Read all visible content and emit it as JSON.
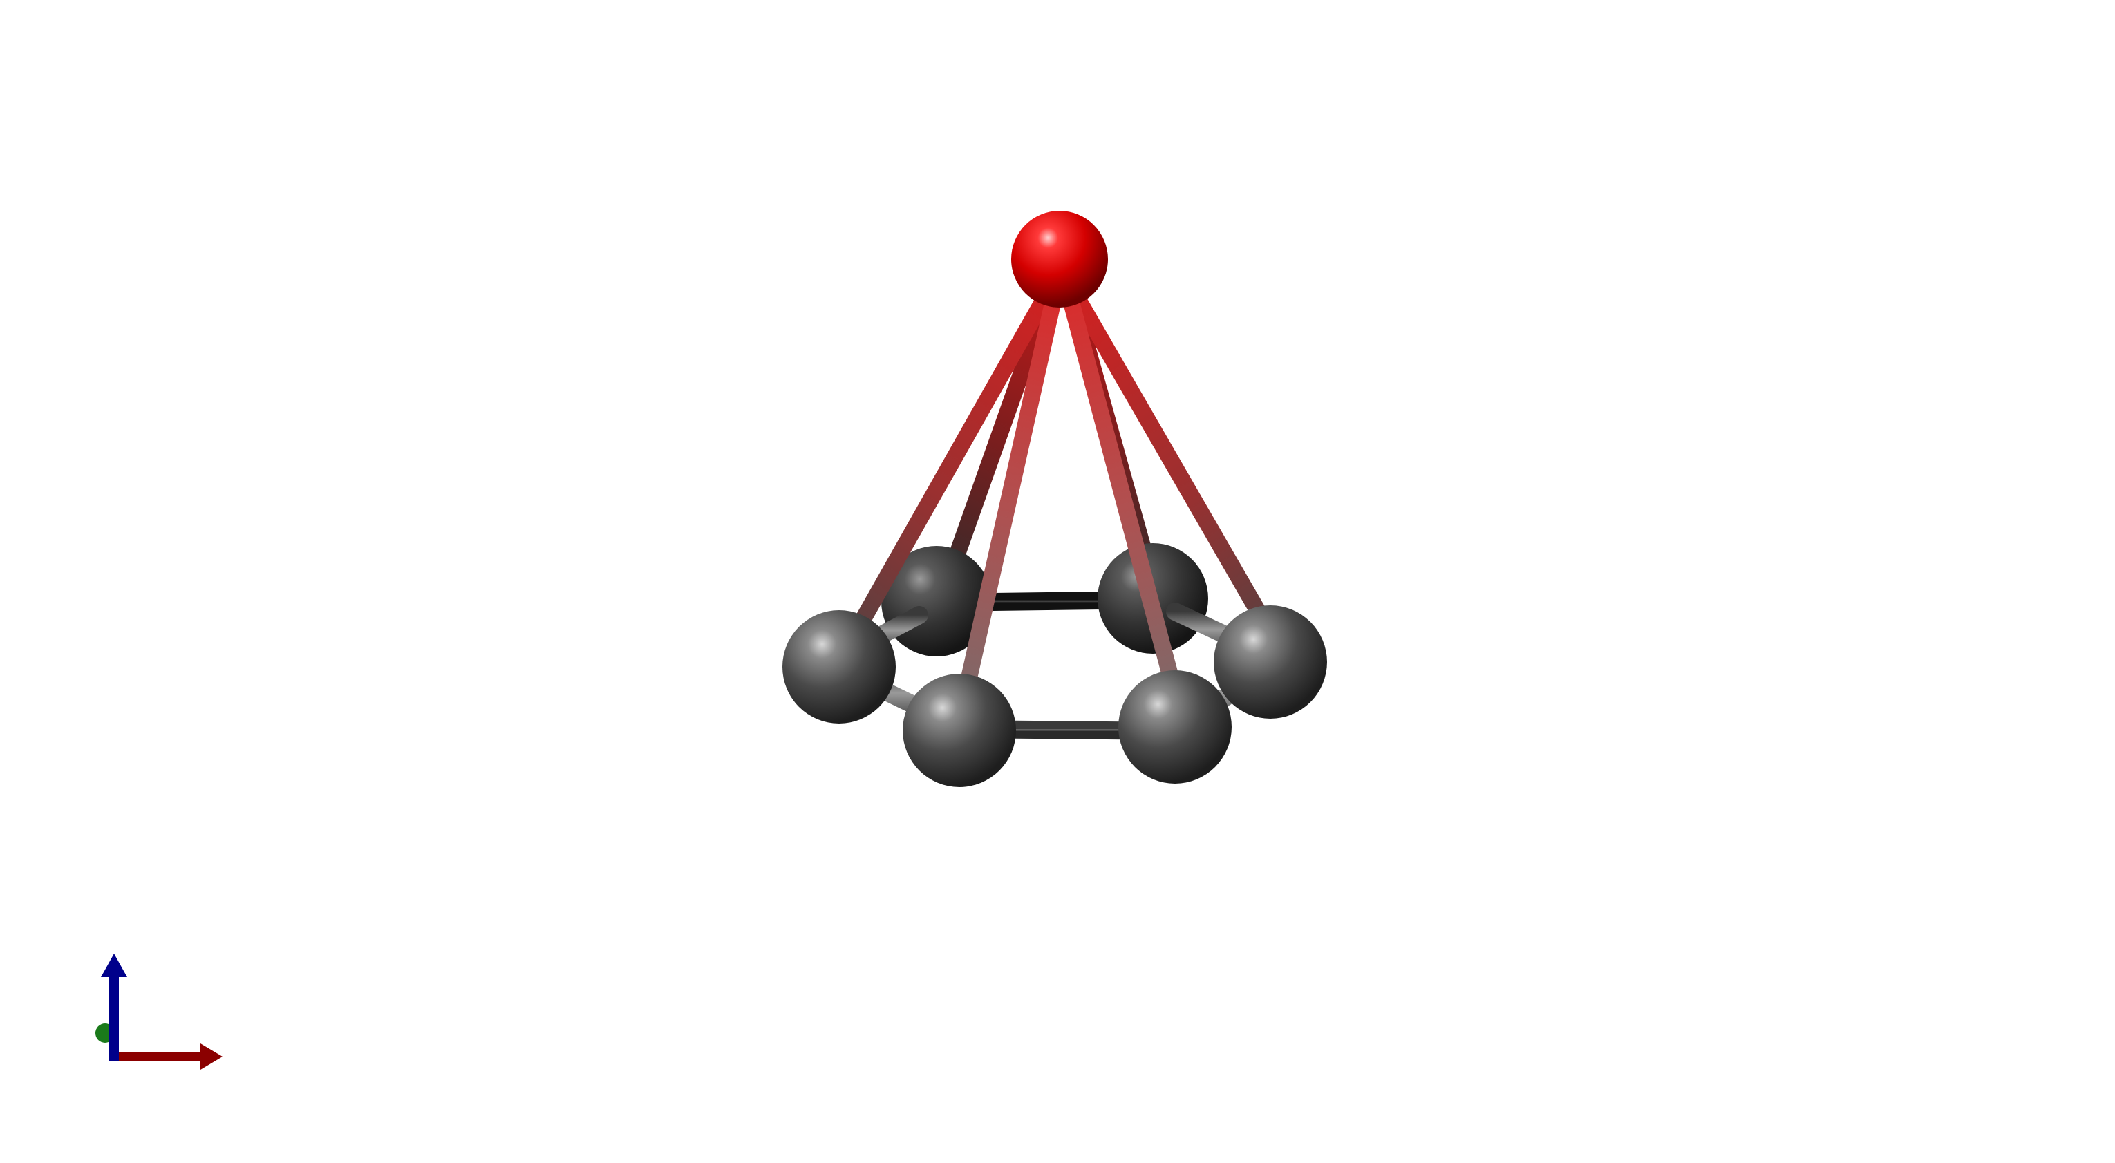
{
  "scene": {
    "background": "#ffffff",
    "style": "ball-and-stick",
    "atoms": [
      {
        "id": "apex",
        "element": "O",
        "color": "#e01010"
      },
      {
        "id": "ring-back-left",
        "element": "C",
        "color": "#555555"
      },
      {
        "id": "ring-back-right",
        "element": "C",
        "color": "#555555"
      },
      {
        "id": "ring-left",
        "element": "C",
        "color": "#555555"
      },
      {
        "id": "ring-right",
        "element": "C",
        "color": "#555555"
      },
      {
        "id": "ring-front-left",
        "element": "C",
        "color": "#555555"
      },
      {
        "id": "ring-front-right",
        "element": "C",
        "color": "#555555"
      }
    ],
    "bonds": [
      {
        "from": "ring-back-left",
        "to": "ring-back-right"
      },
      {
        "from": "ring-left",
        "to": "ring-back-left"
      },
      {
        "from": "ring-back-right",
        "to": "ring-right"
      },
      {
        "from": "ring-left",
        "to": "ring-front-left"
      },
      {
        "from": "ring-front-left",
        "to": "ring-front-right"
      },
      {
        "from": "ring-front-right",
        "to": "ring-right"
      },
      {
        "from": "apex",
        "to": "ring-back-left"
      },
      {
        "from": "apex",
        "to": "ring-back-right"
      },
      {
        "from": "apex",
        "to": "ring-left"
      },
      {
        "from": "apex",
        "to": "ring-right"
      },
      {
        "from": "apex",
        "to": "ring-front-left"
      },
      {
        "from": "apex",
        "to": "ring-front-right"
      }
    ]
  },
  "axes_indicator": {
    "x_color": "#8b0000",
    "y_color": "#1a7a1a",
    "z_color": "#00008b"
  }
}
